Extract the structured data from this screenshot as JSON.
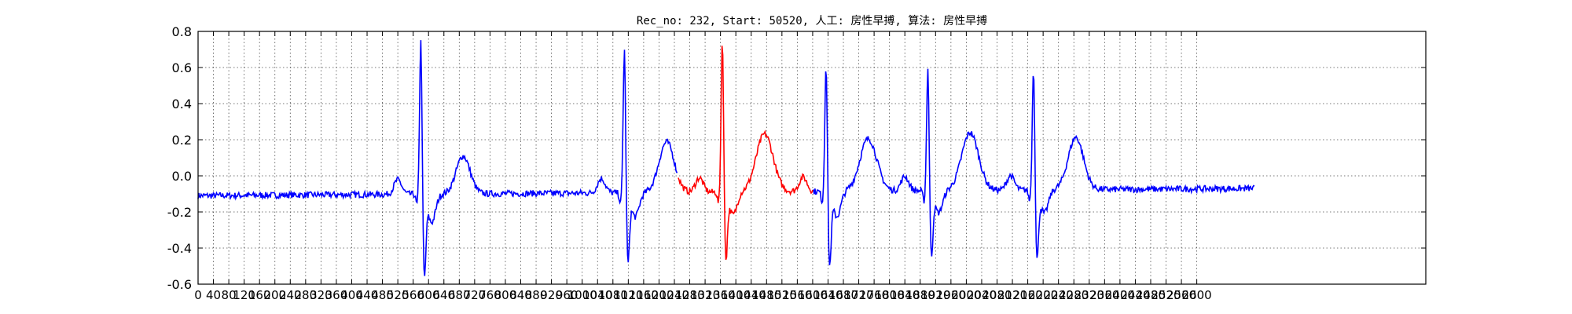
{
  "chart_data": {
    "type": "line",
    "title": "Rec_no: 232, Start: 50520, 人工: 房性早搏, 算法: 房性早搏",
    "xlabel": "",
    "ylabel": "",
    "xlim": [
      0,
      3120
    ],
    "ylim": [
      -0.6,
      0.8
    ],
    "yticks": [
      -0.6,
      -0.4,
      -0.2,
      0.0,
      0.2,
      0.4,
      0.6,
      0.8
    ],
    "xticks": [
      0,
      40,
      80,
      120,
      160,
      200,
      240,
      280,
      320,
      360,
      400,
      440,
      480,
      520,
      560,
      600,
      640,
      680,
      720,
      760,
      800,
      840,
      880,
      920,
      960,
      1000,
      1040,
      1080,
      1120,
      1160,
      1200,
      1240,
      1280,
      1320,
      1360,
      1400,
      1440,
      1480,
      1520,
      1560,
      1600,
      1640,
      1680,
      1720,
      1760,
      1800,
      1840,
      1880,
      1920,
      1960,
      2000,
      2040,
      2080,
      2120,
      2160,
      2200,
      2240,
      2280,
      2320,
      2360,
      2400,
      2440,
      2480,
      2520,
      2560,
      2600
    ],
    "grid": true,
    "x_end": 2750,
    "baseline_start": -0.11,
    "baseline_end": -0.07,
    "highlight": {
      "color": "#ff0000",
      "x_start": 1250,
      "x_end": 1600
    },
    "series": [
      {
        "color": "#0000ff",
        "beats": [
          {
            "r": 580,
            "r_amp": 0.78,
            "s_amp": -0.45,
            "t_amp": 0.21,
            "t_offset": 110,
            "t_width": 18
          },
          {
            "r": 1110,
            "r_amp": 0.73,
            "s_amp": -0.38,
            "t_amp": 0.28,
            "t_offset": 110,
            "t_width": 20
          },
          {
            "r": 1365,
            "r_amp": 0.78,
            "s_amp": -0.36,
            "t_amp": 0.32,
            "t_offset": 110,
            "t_width": 22
          },
          {
            "r": 1635,
            "r_amp": 0.65,
            "s_amp": -0.4,
            "t_amp": 0.29,
            "t_offset": 110,
            "t_width": 22
          },
          {
            "r": 1900,
            "r_amp": 0.62,
            "s_amp": -0.35,
            "t_amp": 0.32,
            "t_offset": 110,
            "t_width": 22
          },
          {
            "r": 2175,
            "r_amp": 0.62,
            "s_amp": -0.37,
            "t_amp": 0.29,
            "t_offset": 110,
            "t_width": 20
          }
        ]
      }
    ]
  }
}
